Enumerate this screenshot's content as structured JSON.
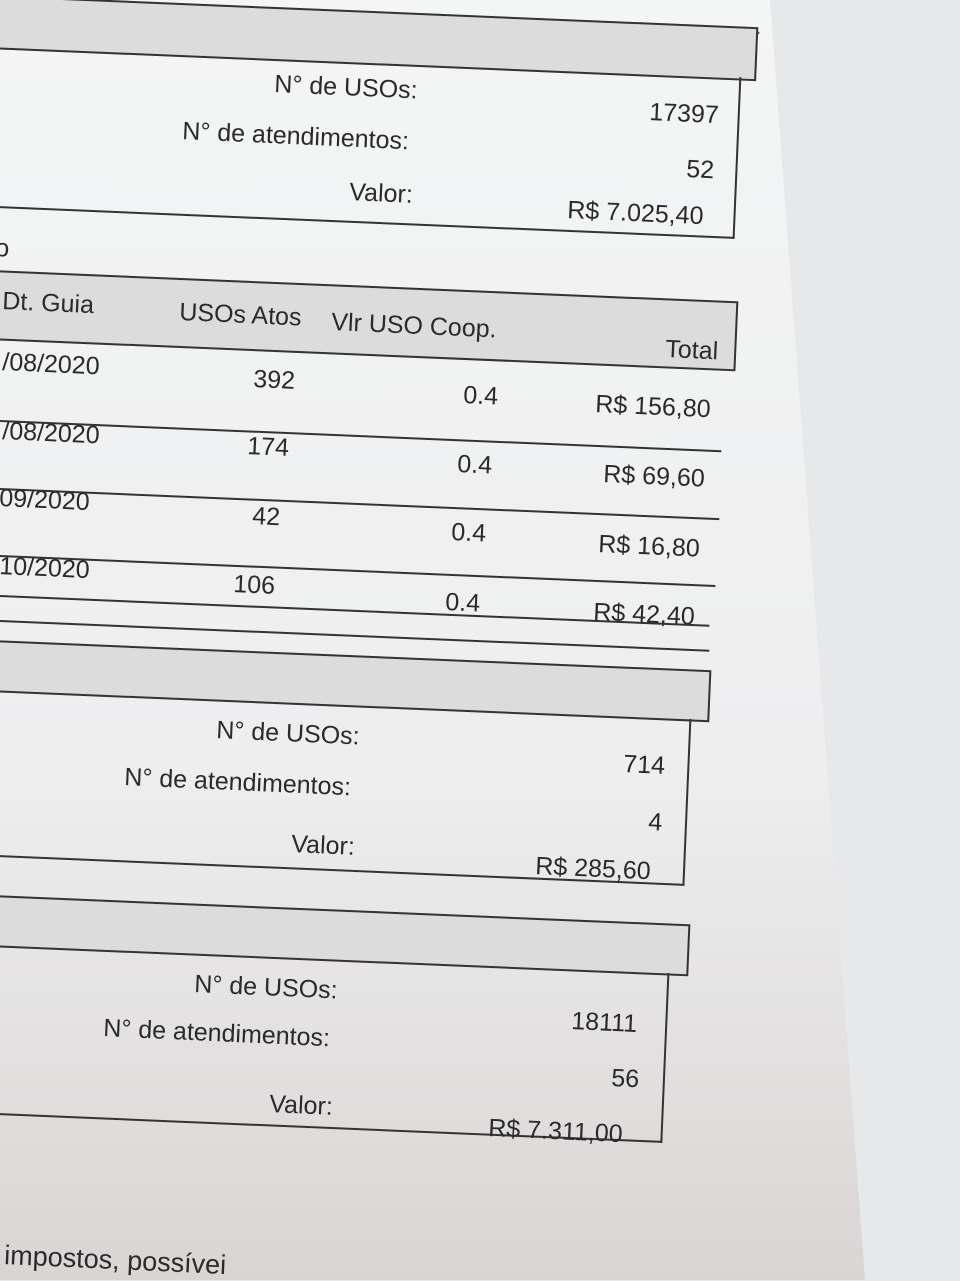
{
  "summary_top": {
    "usos_label": "N° de USOs:",
    "usos": "17397",
    "atend_label": "N° de atendimentos:",
    "atend": "52",
    "valor_label": "Valor:",
    "valor": "R$ 7.025,40"
  },
  "section_fragment": "o",
  "table": {
    "headers": [
      "Dt. Guia",
      "USOs Atos",
      "Vlr USO Coop.",
      "Total"
    ],
    "rows": [
      {
        "date": "/08/2020",
        "usos": "392",
        "vlr": "0.4",
        "total": "R$ 156,80"
      },
      {
        "date": "/08/2020",
        "usos": "174",
        "vlr": "0.4",
        "total": "R$ 69,60"
      },
      {
        "date": "09/2020",
        "usos": "42",
        "vlr": "0.4",
        "total": "R$ 16,80"
      },
      {
        "date": "10/2020",
        "usos": "106",
        "vlr": "0.4",
        "total": "R$ 42,40"
      }
    ]
  },
  "summary_mid": {
    "usos_label": "N° de USOs:",
    "usos": "714",
    "atend_label": "N° de atendimentos:",
    "atend": "4",
    "valor_label": "Valor:",
    "valor": "R$ 285,60"
  },
  "summary_total": {
    "usos_label": "N° de USOs:",
    "usos": "18111",
    "atend_label": "N° de atendimentos:",
    "atend": "56",
    "valor_label": "Valor:",
    "valor": "R$ 7.311,00"
  },
  "footer_text": "impostos, possívei"
}
